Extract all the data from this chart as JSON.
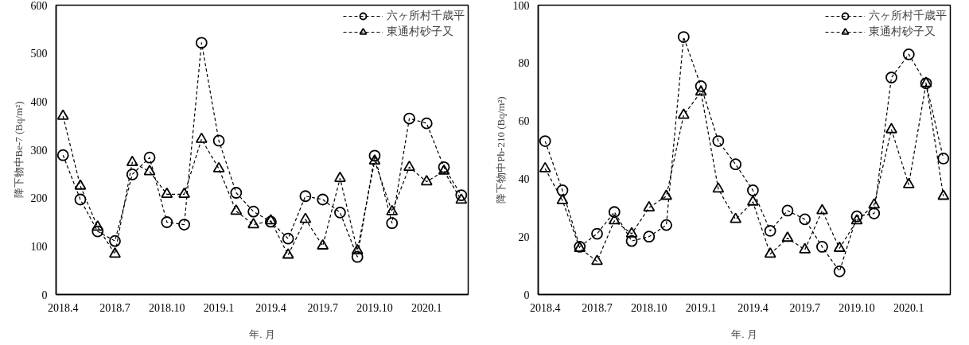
{
  "chart_data": [
    {
      "type": "line",
      "xlabel": "年. 月",
      "ylabel": "降下物中Be-7 (Bq/m²)",
      "categories": [
        "2018.4",
        null,
        null,
        "2018.7",
        null,
        null,
        "2018.10",
        null,
        null,
        "2019.1",
        null,
        null,
        "2019.4",
        null,
        null,
        "2019.7",
        null,
        null,
        "2019.10",
        null,
        null,
        "2020.1",
        null,
        null
      ],
      "ylim": [
        0,
        600
      ],
      "yticks": [
        0,
        100,
        200,
        300,
        400,
        500,
        600
      ],
      "grid": false,
      "legend": "top right",
      "line_style": "dashed",
      "series": [
        {
          "name": "六ヶ所村千歳平",
          "color": "#000000",
          "marker": "circle",
          "values": [
            289,
            197,
            131,
            111,
            249,
            284,
            150,
            145,
            522,
            319,
            211,
            172,
            151,
            116,
            204,
            197,
            170,
            78,
            288,
            148,
            365,
            355,
            264,
            206
          ]
        },
        {
          "name": "東通村砂子又",
          "color": "#000000",
          "marker": "triangle",
          "values": [
            370,
            225,
            140,
            84,
            274,
            255,
            208,
            208,
            322,
            261,
            173,
            145,
            153,
            82,
            156,
            101,
            241,
            91,
            277,
            172,
            264,
            234,
            256,
            196
          ]
        }
      ]
    },
    {
      "type": "line",
      "xlabel": "年. 月",
      "ylabel": "降下物中Pb-210 (Bq/m²)",
      "categories": [
        "2018.4",
        null,
        null,
        "2018.7",
        null,
        null,
        "2018.10",
        null,
        null,
        "2019.1",
        null,
        null,
        "2019.4",
        null,
        null,
        "2019.7",
        null,
        null,
        "2019.10",
        null,
        null,
        "2020.1",
        null,
        null
      ],
      "ylim": [
        0,
        100
      ],
      "yticks": [
        0,
        20,
        40,
        60,
        80,
        100
      ],
      "grid": false,
      "legend": "top right",
      "line_style": "dashed",
      "series": [
        {
          "name": "六ヶ所村千歳平",
          "color": "#000000",
          "marker": "circle",
          "values": [
            53,
            36,
            16.5,
            21,
            28.5,
            18.5,
            20,
            24,
            89,
            72,
            53,
            45,
            36,
            22,
            29,
            26,
            16.5,
            8,
            27,
            28,
            75,
            83,
            73,
            47
          ]
        },
        {
          "name": "東通村砂子又",
          "color": "#000000",
          "marker": "triangle",
          "values": [
            43.5,
            32.5,
            16,
            11.5,
            25.5,
            21,
            30,
            34,
            62,
            70,
            36.5,
            26,
            32,
            14,
            19.5,
            15.5,
            29,
            16,
            25.5,
            31,
            57,
            38,
            73,
            34
          ]
        }
      ]
    }
  ]
}
